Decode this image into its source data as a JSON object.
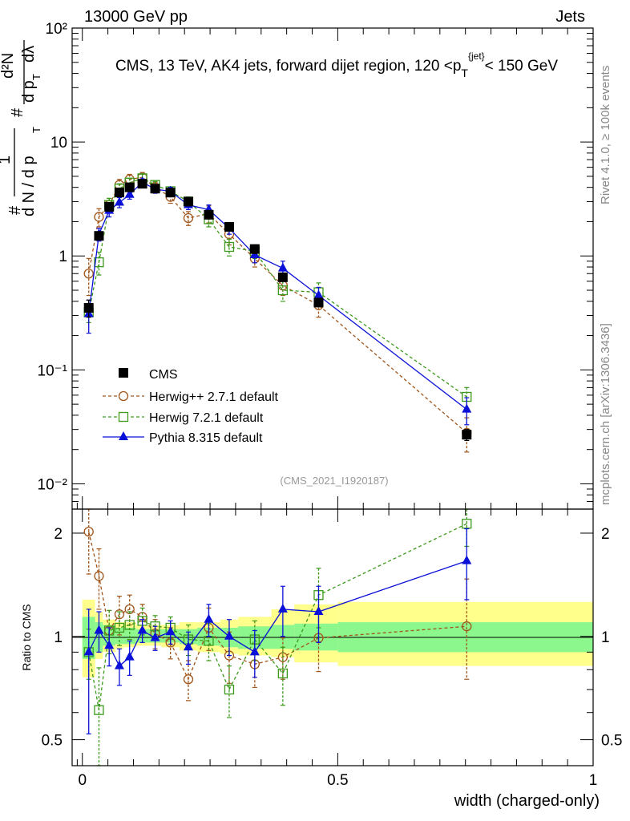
{
  "header": {
    "left": "13000 GeV pp",
    "right": "Jets"
  },
  "side_labels": {
    "rivet": "Rivet 4.1.0, ≥ 100k events",
    "mcplots": "mcplots.cern.ch [arXiv:1306.3436]"
  },
  "colors": {
    "CMS": "#000000",
    "Herwig++ 2.7.1 default": "#a0561c",
    "Herwig 7.2.1 default": "#3d9a1c",
    "Pythia 8.315 default": "#0a10d8",
    "band_outer": "#ffff8c",
    "band_inner": "#8cf78c"
  },
  "chart_data": [
    {
      "type": "line",
      "panel": "main",
      "title": "CMS, 13 TeV, AK4 jets, forward dijet region, 120 <p",
      "title_sub": "T",
      "title_sup": "{jet}",
      "title_tail": "< 150 GeV",
      "watermark": "(CMS_2021_I1920187)",
      "ylabel": "1/dN/dp_T  d²N/dp_T dλ",
      "ylabel_parts": [
        "#",
        "1",
        "d N / d p",
        "T",
        "#",
        "d p",
        "T",
        "dλ",
        "d²N"
      ],
      "yscale": "log",
      "ylim": [
        0.006,
        100
      ],
      "xlim": [
        -0.02,
        1.0
      ],
      "ytick_labels": [
        "10⁻²",
        "10⁻¹",
        "1",
        "10",
        "10²"
      ],
      "ytick_values": [
        0.01,
        0.1,
        1,
        10,
        100
      ],
      "legend_position": "lower-left",
      "legend": [
        "CMS",
        "Herwig++ 2.7.1 default",
        "Herwig 7.2.1 default",
        "Pythia 8.315 default"
      ],
      "x": [
        0.0125,
        0.0325,
        0.0525,
        0.0725,
        0.0925,
        0.1175,
        0.1425,
        0.1725,
        0.2075,
        0.2475,
        0.2875,
        0.3375,
        0.3925,
        0.4625,
        0.7525
      ],
      "series": [
        {
          "name": "CMS",
          "values": [
            0.35,
            1.5,
            2.7,
            3.6,
            4.0,
            4.3,
            3.9,
            3.6,
            3.0,
            2.3,
            1.8,
            1.15,
            0.65,
            0.39,
            0.027
          ],
          "err_up": [
            0.06,
            0.1,
            0.15,
            0.2,
            0.2,
            0.2,
            0.2,
            0.2,
            0.2,
            0.15,
            0.12,
            0.1,
            0.05,
            0.03,
            0.003
          ],
          "err_down": [
            0.06,
            0.1,
            0.15,
            0.2,
            0.2,
            0.2,
            0.2,
            0.2,
            0.2,
            0.15,
            0.12,
            0.1,
            0.05,
            0.03,
            0.003
          ]
        },
        {
          "name": "Herwig++ 2.7.1 default",
          "values": [
            0.7,
            2.2,
            2.8,
            4.2,
            4.7,
            4.9,
            4.0,
            3.3,
            2.15,
            2.35,
            1.55,
            0.95,
            0.55,
            0.37,
            0.028
          ],
          "err_up": [
            0.25,
            0.4,
            0.4,
            0.5,
            0.5,
            0.5,
            0.4,
            0.4,
            0.3,
            0.4,
            0.3,
            0.15,
            0.1,
            0.08,
            0.01
          ],
          "err_down": [
            0.25,
            0.4,
            0.4,
            0.5,
            0.5,
            0.5,
            0.4,
            0.4,
            0.3,
            0.4,
            0.3,
            0.15,
            0.1,
            0.08,
            0.009
          ]
        },
        {
          "name": "Herwig 7.2.1 default",
          "values": [
            0.32,
            0.88,
            2.8,
            3.9,
            4.4,
            4.8,
            4.2,
            3.7,
            3.0,
            2.1,
            1.2,
            1.1,
            0.5,
            0.48,
            0.058
          ],
          "err_up": [
            0.06,
            0.2,
            0.4,
            0.4,
            0.4,
            0.4,
            0.3,
            0.3,
            0.3,
            0.3,
            0.2,
            0.15,
            0.1,
            0.1,
            0.012
          ],
          "err_down": [
            0.06,
            0.2,
            0.4,
            0.4,
            0.4,
            0.4,
            0.3,
            0.3,
            0.3,
            0.3,
            0.2,
            0.15,
            0.1,
            0.1,
            0.012
          ]
        },
        {
          "name": "Pythia 8.315 default",
          "values": [
            0.31,
            1.55,
            2.5,
            2.95,
            3.45,
            4.45,
            3.85,
            3.7,
            2.8,
            2.55,
            1.75,
            1.02,
            0.78,
            0.45,
            0.045
          ],
          "err_up": [
            0.1,
            0.2,
            0.3,
            0.3,
            0.3,
            0.3,
            0.3,
            0.3,
            0.25,
            0.25,
            0.2,
            0.15,
            0.12,
            0.08,
            0.012
          ],
          "err_down": [
            0.1,
            0.2,
            0.3,
            0.3,
            0.3,
            0.3,
            0.3,
            0.3,
            0.25,
            0.25,
            0.2,
            0.15,
            0.12,
            0.08,
            0.012
          ]
        }
      ]
    },
    {
      "type": "line",
      "panel": "ratio",
      "ylabel": "Ratio to CMS",
      "xlabel": "width (charged-only)",
      "xlim": [
        -0.02,
        1.0
      ],
      "ylim": [
        0.42,
        2.35
      ],
      "xtick_labels": [
        "0",
        "0.5",
        "1"
      ],
      "xtick_values": [
        0,
        0.5,
        1
      ],
      "ytick_labels": [
        "0.5",
        "1",
        "2"
      ],
      "ytick_values": [
        0.5,
        1,
        2
      ],
      "reference_line": 1,
      "x": [
        0.0125,
        0.0325,
        0.0525,
        0.0725,
        0.0925,
        0.1175,
        0.1425,
        0.1725,
        0.2075,
        0.2475,
        0.2875,
        0.3375,
        0.3925,
        0.4625,
        0.7525
      ],
      "bin_edges": [
        0.0,
        0.025,
        0.04,
        0.065,
        0.08,
        0.105,
        0.13,
        0.155,
        0.19,
        0.225,
        0.27,
        0.305,
        0.37,
        0.415,
        0.5,
        1.0
      ],
      "band_outer": [
        [
          0.76,
          1.28
        ],
        [
          0.86,
          1.18
        ],
        [
          0.9,
          1.12
        ],
        [
          0.92,
          1.1
        ],
        [
          0.93,
          1.1
        ],
        [
          0.94,
          1.08
        ],
        [
          0.94,
          1.08
        ],
        [
          0.93,
          1.08
        ],
        [
          0.91,
          1.1
        ],
        [
          0.9,
          1.1
        ],
        [
          0.89,
          1.12
        ],
        [
          0.88,
          1.14
        ],
        [
          0.87,
          1.2
        ],
        [
          0.84,
          1.24
        ],
        [
          0.82,
          1.26
        ]
      ],
      "band_inner": [
        [
          0.86,
          1.14
        ],
        [
          0.9,
          1.1
        ],
        [
          0.94,
          1.08
        ],
        [
          0.95,
          1.06
        ],
        [
          0.95,
          1.06
        ],
        [
          0.96,
          1.05
        ],
        [
          0.96,
          1.05
        ],
        [
          0.96,
          1.05
        ],
        [
          0.95,
          1.05
        ],
        [
          0.94,
          1.06
        ],
        [
          0.93,
          1.06
        ],
        [
          0.92,
          1.07
        ],
        [
          0.92,
          1.08
        ],
        [
          0.91,
          1.09
        ],
        [
          0.9,
          1.1
        ]
      ],
      "series": [
        {
          "name": "Herwig++ 2.7.1 default",
          "values": [
            2.02,
            1.5,
            1.04,
            1.16,
            1.2,
            1.14,
            1.02,
            0.96,
            0.75,
            1.06,
            0.88,
            0.83,
            0.87,
            0.99,
            1.07
          ],
          "err_up": [
            0.5,
            0.3,
            0.15,
            0.15,
            0.12,
            0.1,
            0.1,
            0.1,
            0.1,
            0.15,
            0.15,
            0.12,
            0.12,
            0.2,
            0.4
          ],
          "err_down": [
            0.5,
            0.3,
            0.15,
            0.15,
            0.12,
            0.1,
            0.1,
            0.1,
            0.1,
            0.15,
            0.15,
            0.12,
            0.12,
            0.2,
            0.32
          ]
        },
        {
          "name": "Herwig 7.2.1 default",
          "values": [
            0.9,
            0.61,
            1.04,
            1.06,
            1.08,
            1.11,
            1.07,
            1.06,
            0.98,
            0.97,
            0.7,
            0.98,
            0.78,
            1.32,
            2.13
          ],
          "err_up": [
            0.15,
            0.2,
            0.15,
            0.12,
            0.1,
            0.1,
            0.08,
            0.08,
            0.1,
            0.12,
            0.12,
            0.13,
            0.15,
            0.26,
            0.3
          ],
          "err_down": [
            0.15,
            0.22,
            0.15,
            0.12,
            0.1,
            0.1,
            0.08,
            0.08,
            0.1,
            0.12,
            0.12,
            0.13,
            0.15,
            0.26,
            0.3
          ]
        },
        {
          "name": "Pythia 8.315 default",
          "values": [
            0.9,
            1.04,
            0.94,
            0.82,
            0.87,
            1.04,
            0.99,
            1.03,
            0.93,
            1.12,
            1.0,
            0.9,
            1.2,
            1.18,
            1.66
          ],
          "err_up": [
            0.3,
            0.14,
            0.12,
            0.1,
            0.1,
            0.08,
            0.08,
            0.08,
            0.1,
            0.12,
            0.12,
            0.14,
            0.2,
            0.22,
            0.4
          ],
          "err_down": [
            0.38,
            0.14,
            0.12,
            0.1,
            0.1,
            0.08,
            0.08,
            0.08,
            0.1,
            0.12,
            0.12,
            0.14,
            0.2,
            0.22,
            0.38
          ]
        }
      ]
    }
  ]
}
